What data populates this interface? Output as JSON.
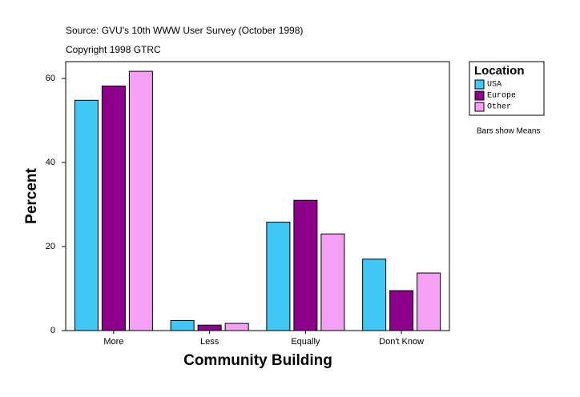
{
  "chart_data": {
    "type": "bar",
    "subtitle": "Source: GVU's 10th WWW User Survey (October 1998)",
    "copyright": "Copyright 1998 GTRC",
    "x_label": "Community Building",
    "y_label": "Percent",
    "categories": [
      "More",
      "Less",
      "Equally",
      "Don't Know"
    ],
    "series": [
      {
        "name": "USA",
        "color": "#40c8f4",
        "values": [
          54.8,
          2.4,
          25.8,
          17.0
        ]
      },
      {
        "name": "Europe",
        "color": "#8c008c",
        "values": [
          58.2,
          1.3,
          31.0,
          9.5
        ]
      },
      {
        "name": "Other",
        "color": "#f4a0f4",
        "values": [
          61.7,
          1.7,
          23.0,
          13.7
        ]
      }
    ],
    "legend_title": "Location",
    "legend_position": "right",
    "note": "Bars show Means",
    "ylim": [
      0,
      64
    ],
    "yticks": [
      0,
      20,
      40,
      60
    ],
    "grid": false
  }
}
